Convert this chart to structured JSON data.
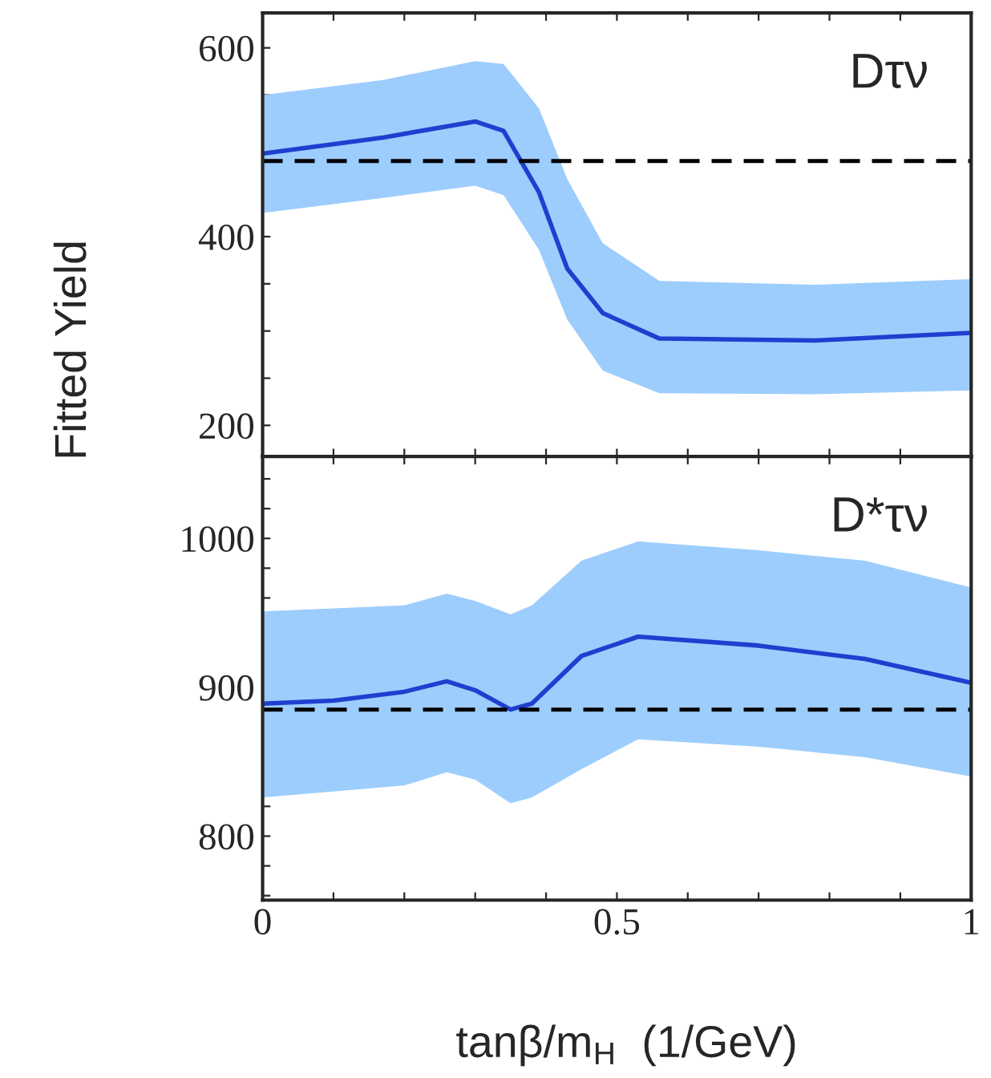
{
  "chart_data": [
    {
      "type": "line",
      "ylabel": "Fitted Yield",
      "xlim": [
        0,
        1
      ],
      "ylim": [
        167,
        637
      ],
      "xticks": [
        0,
        {
          "value": 0.1,
          "label": null
        },
        {
          "value": 0.2,
          "label": null
        },
        {
          "value": 0.3,
          "label": null
        },
        {
          "value": 0.4,
          "label": null
        },
        0.5,
        {
          "value": 0.6,
          "label": null
        },
        {
          "value": 0.7,
          "label": null
        },
        {
          "value": 0.8,
          "label": null
        },
        {
          "value": 0.9,
          "label": null
        },
        1
      ],
      "yticks": [
        200,
        {
          "value": 250,
          "label": null
        },
        {
          "value": 300,
          "label": null
        },
        {
          "value": 350,
          "label": null
        },
        400,
        {
          "value": 450,
          "label": null
        },
        {
          "value": 500,
          "label": null
        },
        {
          "value": 550,
          "label": null
        },
        600
      ],
      "tick_labels": "y",
      "grid": false,
      "legend": false,
      "series": [
        {
          "color": "#1f3fcf",
          "x": [
            0,
            0.17,
            0.3,
            0.34,
            0.39,
            0.43,
            0.48,
            0.56,
            0.78,
            1.0
          ],
          "values": [
            488,
            505,
            522,
            512,
            447,
            366,
            319,
            292,
            290,
            298
          ],
          "lower": [
            425,
            441,
            454,
            444,
            386,
            312,
            258,
            234,
            233,
            237
          ],
          "upper": [
            550,
            566,
            586,
            583,
            536,
            461,
            393,
            353,
            349,
            355
          ]
        }
      ],
      "ref_lines": [
        {
          "axis": "y",
          "value": 480,
          "color": "#000000",
          "line_style": "dashed"
        }
      ],
      "annotations": [
        "Dτν"
      ]
    },
    {
      "type": "line",
      "xlabel": "tanβ/m$_{H}$  (1/GeV)",
      "xlim": [
        0,
        1
      ],
      "ylim": [
        757,
        1055
      ],
      "xticks": [
        0,
        {
          "value": 0.1,
          "label": null
        },
        {
          "value": 0.2,
          "label": null
        },
        {
          "value": 0.3,
          "label": null
        },
        {
          "value": 0.4,
          "label": null
        },
        0.5,
        {
          "value": 0.6,
          "label": null
        },
        {
          "value": 0.7,
          "label": null
        },
        {
          "value": 0.8,
          "label": null
        },
        {
          "value": 0.9,
          "label": null
        },
        1
      ],
      "yticks": [
        {
          "value": 760,
          "label": null
        },
        {
          "value": 780,
          "label": null
        },
        800,
        {
          "value": 820,
          "label": null
        },
        {
          "value": 840,
          "label": null
        },
        {
          "value": 860,
          "label": null
        },
        {
          "value": 880,
          "label": null
        },
        900,
        {
          "value": 920,
          "label": null
        },
        {
          "value": 940,
          "label": null
        },
        {
          "value": 960,
          "label": null
        },
        {
          "value": 980,
          "label": null
        },
        1000,
        {
          "value": 1020,
          "label": null
        },
        {
          "value": 1040,
          "label": null
        }
      ],
      "grid": false,
      "legend": false,
      "series": [
        {
          "color": "#1f3fcf",
          "x": [
            0,
            0.1,
            0.2,
            0.26,
            0.3,
            0.35,
            0.38,
            0.45,
            0.53,
            0.7,
            0.85,
            1.0
          ],
          "values": [
            889,
            891,
            897,
            904,
            898,
            885,
            889,
            921,
            934,
            928,
            919,
            903
          ],
          "lower": [
            826,
            830,
            834,
            843,
            838,
            822,
            826,
            845,
            865,
            860,
            853,
            840
          ],
          "upper": [
            951,
            953,
            955,
            963,
            958,
            949,
            955,
            985,
            998,
            992,
            985,
            967
          ]
        }
      ],
      "ref_lines": [
        {
          "axis": "y",
          "value": 885,
          "color": "#000000",
          "line_style": "dashed"
        }
      ],
      "annotations": [
        "D*τν"
      ]
    }
  ]
}
